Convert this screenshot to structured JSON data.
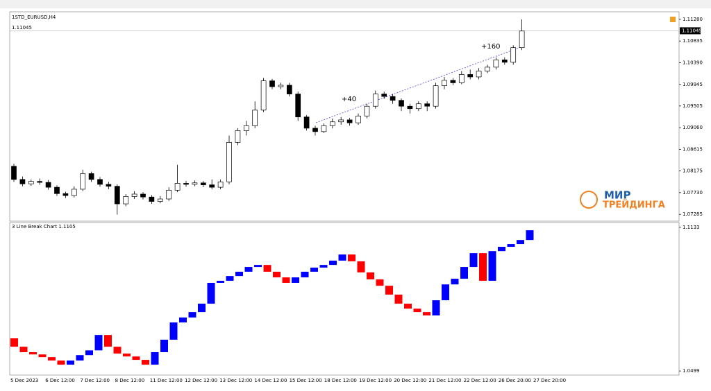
{
  "chart_data": [
    {
      "type": "candlestick",
      "title": "1STD_EURUSD,H4",
      "last_price": 1.11045,
      "up_color": "#ffffff",
      "down_color": "#000000",
      "ylim": [
        1.0716,
        1.1142
      ],
      "yticks": [
        {
          "value": 1.1128,
          "label": "1.11280"
        },
        {
          "value": 1.10835,
          "label": "1.10835"
        },
        {
          "value": 1.1039,
          "label": "1.10390"
        },
        {
          "value": 1.09945,
          "label": "1.09945"
        },
        {
          "value": 1.09505,
          "label": "1.09505"
        },
        {
          "value": 1.0906,
          "label": "1.09060"
        },
        {
          "value": 1.08615,
          "label": "1.08615"
        },
        {
          "value": 1.08175,
          "label": "1.08175"
        },
        {
          "value": 1.0773,
          "label": "1.07730"
        },
        {
          "value": 1.07285,
          "label": "1.07285"
        }
      ],
      "annotations": [
        "+40",
        "+160"
      ],
      "watermark": [
        "МИР",
        "ТРЕЙДИНГА"
      ],
      "ohlc": [
        [
          1.0827,
          1.0832,
          1.0795,
          1.08
        ],
        [
          1.08,
          1.0806,
          1.0786,
          1.0791
        ],
        [
          1.0791,
          1.08,
          1.0787,
          1.0796
        ],
        [
          1.0796,
          1.0802,
          1.0789,
          1.0794
        ],
        [
          1.0794,
          1.0799,
          1.0779,
          1.0784
        ],
        [
          1.0784,
          1.0788,
          1.0766,
          1.0771
        ],
        [
          1.0771,
          1.0775,
          1.0762,
          1.0767
        ],
        [
          1.0767,
          1.0786,
          1.0763,
          1.078
        ],
        [
          1.078,
          1.082,
          1.0776,
          1.0812
        ],
        [
          1.0812,
          1.0816,
          1.0795,
          1.08
        ],
        [
          1.08,
          1.0805,
          1.0785,
          1.079
        ],
        [
          1.079,
          1.0795,
          1.078,
          1.0786
        ],
        [
          1.0786,
          1.079,
          1.0728,
          1.075
        ],
        [
          1.075,
          1.077,
          1.0745,
          1.0765
        ],
        [
          1.0765,
          1.0776,
          1.076,
          1.077
        ],
        [
          1.077,
          1.0774,
          1.0759,
          1.0764
        ],
        [
          1.0764,
          1.0768,
          1.075,
          1.0755
        ],
        [
          1.0755,
          1.0766,
          1.0751,
          1.076
        ],
        [
          1.076,
          1.0784,
          1.0756,
          1.0778
        ],
        [
          1.0778,
          1.083,
          1.0774,
          1.0792
        ],
        [
          1.0792,
          1.0797,
          1.0785,
          1.079
        ],
        [
          1.079,
          1.0798,
          1.0786,
          1.0793
        ],
        [
          1.0793,
          1.0797,
          1.0784,
          1.0789
        ],
        [
          1.0789,
          1.08,
          1.078,
          1.0784
        ],
        [
          1.0784,
          1.08,
          1.078,
          1.0795
        ],
        [
          1.0795,
          1.089,
          1.079,
          1.0876
        ],
        [
          1.0876,
          1.0905,
          1.087,
          1.09
        ],
        [
          1.09,
          1.092,
          1.089,
          1.091
        ],
        [
          1.091,
          1.096,
          1.0905,
          1.0942
        ],
        [
          1.0942,
          1.1008,
          1.0938,
          1.1002
        ],
        [
          1.1002,
          1.1006,
          1.0985,
          1.099
        ],
        [
          1.099,
          1.0998,
          1.0985,
          1.0993
        ],
        [
          1.0993,
          1.0998,
          1.097,
          1.0975
        ],
        [
          1.0975,
          1.098,
          1.092,
          1.0928
        ],
        [
          1.0928,
          1.0932,
          1.09,
          1.0905
        ],
        [
          1.0905,
          1.091,
          1.089,
          1.0898
        ],
        [
          1.0898,
          1.0915,
          1.0895,
          1.091
        ],
        [
          1.091,
          1.0925,
          1.0905,
          1.0918
        ],
        [
          1.0918,
          1.0928,
          1.0912,
          1.0922
        ],
        [
          1.0922,
          1.0926,
          1.091,
          1.0916
        ],
        [
          1.0916,
          1.0935,
          1.0912,
          1.093
        ],
        [
          1.093,
          1.0955,
          1.0925,
          1.095
        ],
        [
          1.095,
          1.0982,
          1.0945,
          1.0975
        ],
        [
          1.0975,
          1.098,
          1.0965,
          1.097
        ],
        [
          1.097,
          1.0975,
          1.0955,
          1.0962
        ],
        [
          1.0962,
          1.0966,
          1.094,
          1.095
        ],
        [
          1.095,
          1.0955,
          1.0935,
          1.0945
        ],
        [
          1.0945,
          1.096,
          1.094,
          1.0955
        ],
        [
          1.0955,
          1.096,
          1.094,
          1.095
        ],
        [
          1.095,
          1.0998,
          1.0945,
          1.0992
        ],
        [
          1.0992,
          1.101,
          1.0985,
          1.1003
        ],
        [
          1.1003,
          1.1008,
          1.0993,
          1.0998
        ],
        [
          1.0998,
          1.1022,
          1.0995,
          1.1015
        ],
        [
          1.1015,
          1.1025,
          1.1005,
          1.101
        ],
        [
          1.101,
          1.1028,
          1.1005,
          1.1022
        ],
        [
          1.1022,
          1.1035,
          1.1018,
          1.103
        ],
        [
          1.103,
          1.105,
          1.1025,
          1.1045
        ],
        [
          1.1045,
          1.105,
          1.1035,
          1.104
        ],
        [
          1.104,
          1.1075,
          1.1035,
          1.107
        ],
        [
          1.107,
          1.1128,
          1.1065,
          1.1104
        ]
      ]
    },
    {
      "type": "linebreak",
      "title": "3 Line Break Chart 1.1105",
      "up_color": "#0000ff",
      "down_color": "#ff0000",
      "ylim": [
        1.0484,
        1.1151
      ],
      "yticks": [
        1.1133,
        1.0499
      ],
      "open": 1.0643,
      "closes": [
        1.0606,
        1.0582,
        1.0572,
        1.056,
        1.0545,
        1.0527,
        1.0545,
        1.0569,
        1.059,
        1.0658,
        1.0606,
        1.0576,
        1.0563,
        1.0548,
        1.0527,
        1.0582,
        1.0637,
        1.0713,
        1.0735,
        1.0759,
        1.0796,
        1.0888,
        1.0897,
        1.0918,
        1.0937,
        1.0958,
        1.0967,
        1.0937,
        1.0912,
        1.0888,
        1.0912,
        1.0937,
        1.0955,
        1.0967,
        1.0986,
        1.1013,
        1.0983,
        1.0934,
        1.0903,
        1.0875,
        1.0836,
        1.0796,
        1.0774,
        1.0759,
        1.0744,
        1.0811,
        1.0881,
        1.0906,
        1.0958,
        1.1019,
        1.0897,
        1.1028,
        1.1047,
        1.1059,
        1.1077,
        1.112
      ],
      "x_labels": [
        "5 Dec 2023",
        "6 Dec 12:00",
        "7 Dec 12:00",
        "8 Dec 12:00",
        "11 Dec 12:00",
        "12 Dec 12:00",
        "13 Dec 12:00",
        "14 Dec 12:00",
        "15 Dec 12:00",
        "18 Dec 12:00",
        "19 Dec 12:00",
        "20 Dec 12:00",
        "21 Dec 12:00",
        "22 Dec 12:00",
        "26 Dec 20:00",
        "27 Dec 20:00"
      ]
    }
  ]
}
